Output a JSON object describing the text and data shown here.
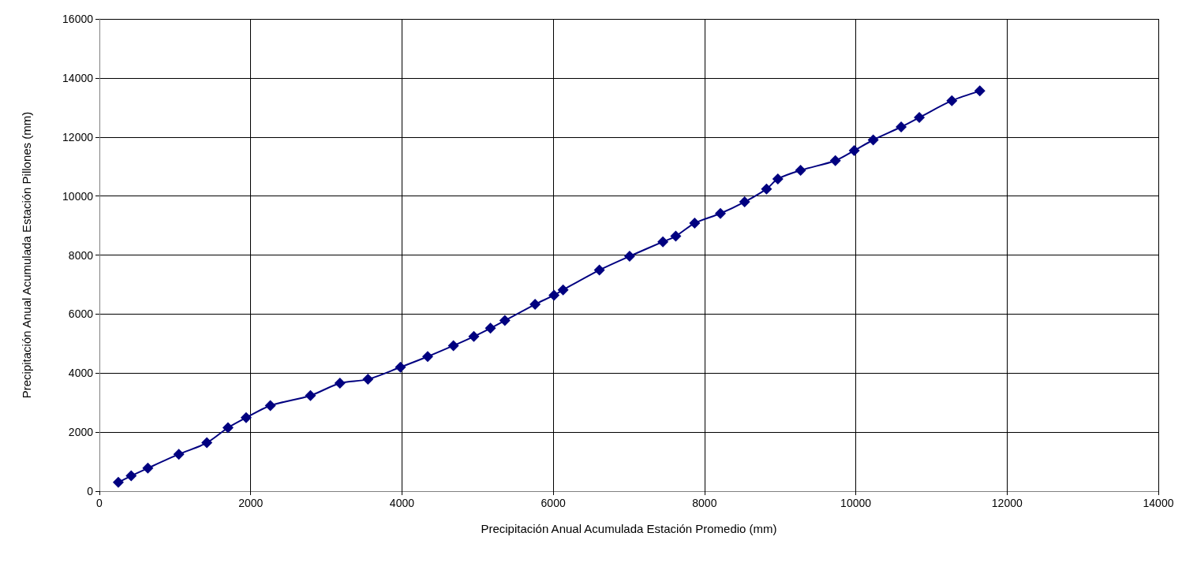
{
  "chart_data": {
    "type": "line",
    "xlabel": "Precipitación Anual Acumulada Estación Promedio (mm)",
    "ylabel": "Precipitación Anual Acumulada Estación Pillones (mm)",
    "xlim": [
      0,
      14000
    ],
    "xticks": [
      0,
      2000,
      4000,
      6000,
      8000,
      10000,
      12000,
      14000
    ],
    "ylim": [
      0,
      16000
    ],
    "yticks": [
      0,
      2000,
      4000,
      6000,
      8000,
      10000,
      12000,
      14000,
      16000
    ],
    "grid": true,
    "marker": "diamond",
    "line_style": "solid",
    "series": [
      {
        "color": "#000080",
        "x": [
          250,
          420,
          640,
          1050,
          1420,
          1700,
          1940,
          2260,
          2790,
          3180,
          3550,
          3980,
          4340,
          4680,
          4950,
          5170,
          5360,
          5760,
          6010,
          6130,
          6610,
          7010,
          7450,
          7620,
          7870,
          8210,
          8530,
          8820,
          8970,
          9270,
          9730,
          9980,
          10230,
          10600,
          10840,
          11270,
          11640
        ],
        "values": [
          300,
          520,
          780,
          1250,
          1640,
          2150,
          2490,
          2900,
          3240,
          3660,
          3790,
          4200,
          4560,
          4930,
          5240,
          5520,
          5780,
          6330,
          6640,
          6820,
          7490,
          7960,
          8450,
          8640,
          9080,
          9410,
          9800,
          10240,
          10580,
          10870,
          11200,
          11540,
          11900,
          12340,
          12660,
          13230,
          13560
        ]
      }
    ]
  }
}
